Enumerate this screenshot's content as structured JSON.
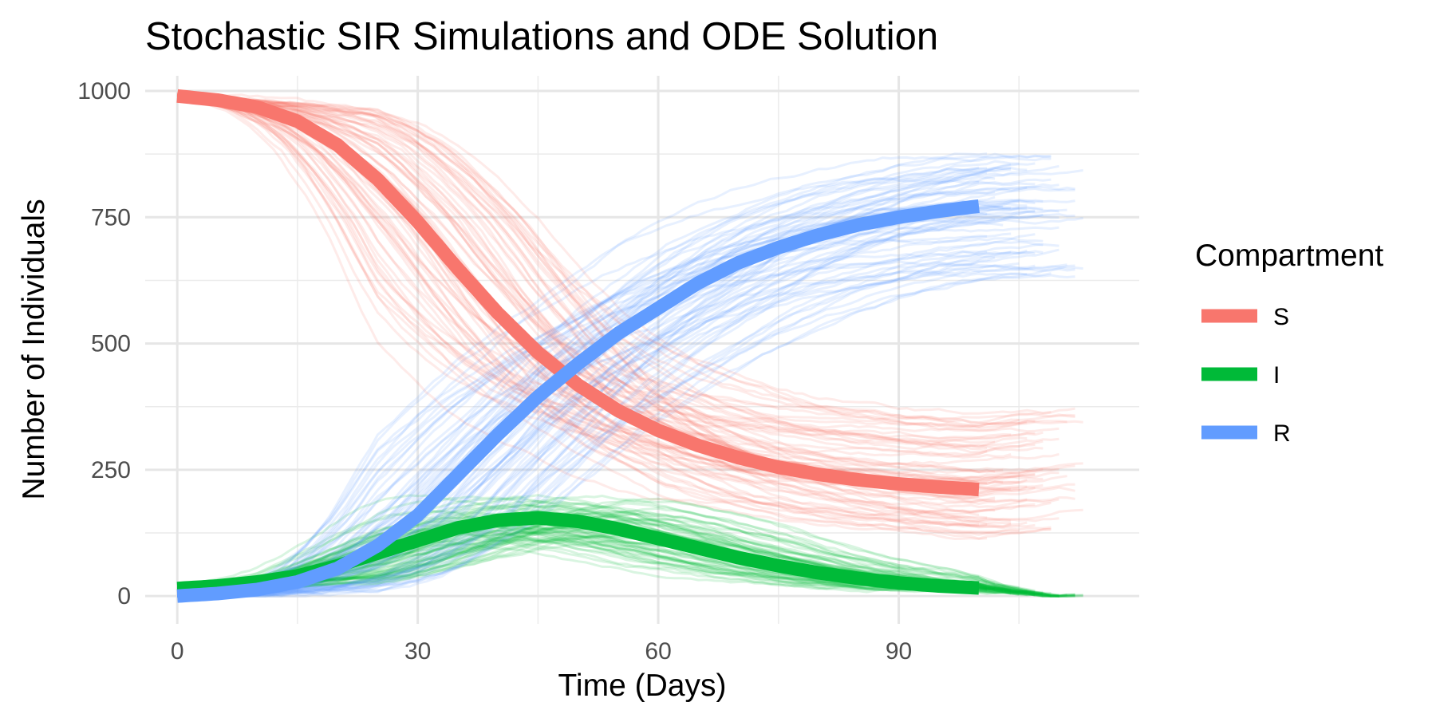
{
  "chart_data": {
    "type": "line",
    "title": "Stochastic SIR Simulations and ODE Solution",
    "xlabel": "Time (Days)",
    "ylabel": "Number of Individuals",
    "xlim": [
      -4,
      120
    ],
    "ylim": [
      -55,
      1030
    ],
    "x_ticks": [
      0,
      30,
      60,
      90
    ],
    "x_tick_labels": [
      "0",
      "30",
      "60",
      "90"
    ],
    "x_minor": [
      15,
      45,
      75,
      105
    ],
    "y_ticks": [
      0,
      250,
      500,
      750,
      1000
    ],
    "y_tick_labels": [
      "0",
      "250",
      "500",
      "750",
      "1000"
    ],
    "y_minor": [
      125,
      375,
      625,
      875
    ],
    "grid": true,
    "legend": {
      "title": "Compartment",
      "placement": "right",
      "entries": [
        {
          "label": "S",
          "color": "#F8766D"
        },
        {
          "label": "I",
          "color": "#00BA38"
        },
        {
          "label": "R",
          "color": "#619CFF"
        }
      ]
    },
    "series": [
      {
        "name": "S",
        "color": "#F8766D",
        "x": [
          0,
          5,
          10,
          15,
          20,
          25,
          30,
          35,
          40,
          45,
          50,
          55,
          60,
          65,
          70,
          75,
          80,
          85,
          90,
          95,
          100
        ],
        "values": [
          990,
          982,
          968,
          940,
          893,
          825,
          741,
          648,
          560,
          482,
          418,
          367,
          328,
          298,
          274,
          255,
          241,
          230,
          222,
          216,
          211
        ]
      },
      {
        "name": "I",
        "color": "#00BA38",
        "x": [
          0,
          5,
          10,
          15,
          20,
          25,
          30,
          35,
          40,
          45,
          50,
          55,
          60,
          65,
          70,
          75,
          80,
          85,
          90,
          95,
          100
        ],
        "values": [
          15,
          20,
          28,
          40,
          60,
          85,
          110,
          135,
          150,
          155,
          148,
          133,
          114,
          95,
          76,
          60,
          46,
          35,
          26,
          20,
          16
        ]
      },
      {
        "name": "R",
        "color": "#619CFF",
        "x": [
          0,
          5,
          10,
          15,
          20,
          25,
          30,
          35,
          40,
          45,
          50,
          55,
          60,
          65,
          70,
          75,
          80,
          85,
          90,
          95,
          100
        ],
        "values": [
          0,
          5,
          13,
          28,
          55,
          100,
          160,
          240,
          320,
          395,
          460,
          520,
          570,
          620,
          660,
          690,
          715,
          735,
          750,
          762,
          772
        ]
      }
    ],
    "stochastic_runs": {
      "count": 70,
      "opacity": 0.15
    }
  }
}
